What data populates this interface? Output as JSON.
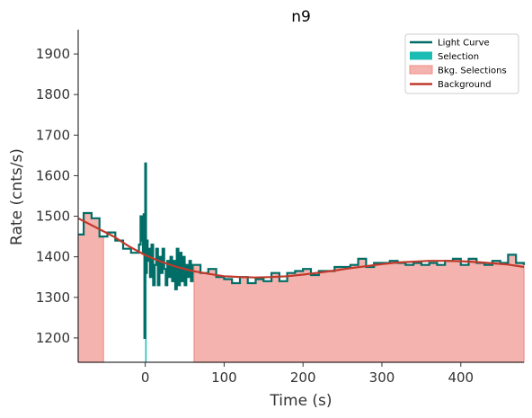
{
  "chart_data": {
    "type": "line",
    "title": "n9",
    "xlabel": "Time (s)",
    "ylabel": "Rate (cnts/s)",
    "xlim": [
      -85,
      480
    ],
    "ylim": [
      1140,
      1960
    ],
    "xticks": [
      0,
      100,
      200,
      300,
      400
    ],
    "yticks": [
      1200,
      1300,
      1400,
      1500,
      1600,
      1700,
      1800,
      1900
    ],
    "grid": false,
    "legend_position": "top-right",
    "legend": [
      {
        "label": "Light Curve",
        "kind": "line",
        "color": "#006d67"
      },
      {
        "label": "Selection",
        "kind": "patch",
        "color": "#1abcb3"
      },
      {
        "label": "Bkg. Selections",
        "kind": "patch",
        "color": "#f4b3ae"
      },
      {
        "label": "Background",
        "kind": "line",
        "color": "#c0392b"
      }
    ],
    "series": [
      {
        "name": "Light Curve",
        "color": "#006d67",
        "step": "post",
        "x": [
          -85,
          -78,
          -68,
          -58,
          -48,
          -38,
          -28,
          -18,
          -8,
          -6,
          -4,
          -3,
          -2,
          -1,
          0,
          1,
          2,
          3,
          4,
          6,
          8,
          10,
          12,
          14,
          16,
          18,
          20,
          22,
          24,
          26,
          28,
          30,
          32,
          34,
          36,
          38,
          40,
          42,
          44,
          46,
          48,
          50,
          52,
          54,
          56,
          58,
          60,
          70,
          80,
          90,
          100,
          110,
          120,
          130,
          140,
          150,
          160,
          170,
          180,
          190,
          200,
          210,
          220,
          230,
          240,
          250,
          260,
          270,
          280,
          290,
          300,
          310,
          320,
          330,
          340,
          350,
          360,
          370,
          380,
          390,
          400,
          410,
          420,
          430,
          440,
          450,
          460,
          470,
          480
        ],
        "y": [
          1455,
          1508,
          1495,
          1450,
          1460,
          1440,
          1420,
          1410,
          1430,
          1500,
          1440,
          1410,
          1505,
          1200,
          1630,
          1360,
          1440,
          1390,
          1420,
          1350,
          1430,
          1330,
          1380,
          1420,
          1330,
          1400,
          1360,
          1420,
          1370,
          1330,
          1390,
          1350,
          1400,
          1340,
          1390,
          1320,
          1420,
          1330,
          1410,
          1340,
          1400,
          1330,
          1380,
          1350,
          1390,
          1340,
          1380,
          1360,
          1370,
          1350,
          1345,
          1335,
          1350,
          1335,
          1345,
          1340,
          1360,
          1340,
          1360,
          1365,
          1370,
          1355,
          1365,
          1365,
          1375,
          1375,
          1380,
          1395,
          1375,
          1385,
          1385,
          1390,
          1385,
          1380,
          1385,
          1380,
          1385,
          1380,
          1390,
          1395,
          1380,
          1395,
          1385,
          1380,
          1390,
          1385,
          1405,
          1385,
          1380
        ]
      },
      {
        "name": "Background",
        "color": "#c0392b",
        "x": [
          -85,
          -60,
          -40,
          -20,
          0,
          20,
          40,
          60,
          80,
          100,
          120,
          140,
          160,
          180,
          200,
          220,
          240,
          260,
          280,
          300,
          320,
          340,
          360,
          380,
          400,
          420,
          440,
          460,
          480
        ],
        "y": [
          1495,
          1470,
          1450,
          1425,
          1404,
          1388,
          1375,
          1365,
          1358,
          1352,
          1350,
          1349,
          1350,
          1352,
          1356,
          1361,
          1366,
          1372,
          1377,
          1382,
          1386,
          1388,
          1390,
          1390,
          1389,
          1387,
          1384,
          1381,
          1375
        ]
      }
    ],
    "selection": {
      "x_start": 0,
      "x_end": 1,
      "color": "#1abcb3"
    },
    "bkg_selections": [
      {
        "x_start": -85,
        "x_end": -53
      },
      {
        "x_start": 62,
        "x_end": 480
      }
    ]
  }
}
